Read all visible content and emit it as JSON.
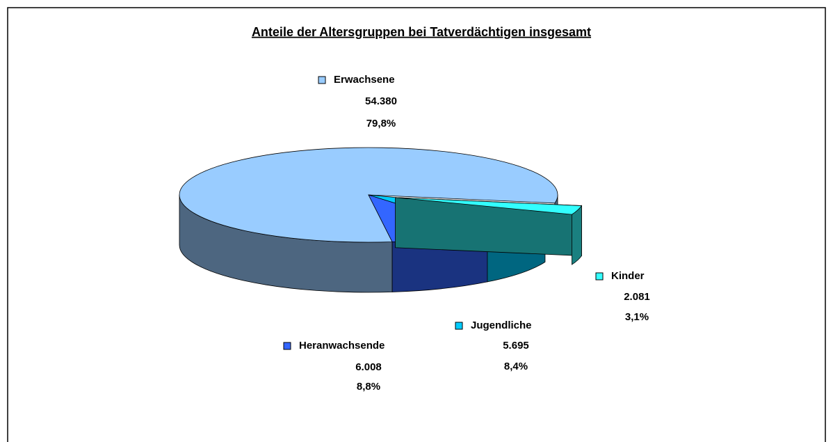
{
  "chart_data": {
    "type": "pie",
    "title": "Anteile der Altersgruppen bei Tatverdächtigen insgesamt",
    "categories": [
      "Kinder",
      "Jugendliche",
      "Heranwachsende",
      "Erwachsene"
    ],
    "values": [
      2081,
      5695,
      6008,
      54380
    ],
    "value_labels": [
      "2.081",
      "5.695",
      "6.008",
      "54.380"
    ],
    "percentages": [
      3.1,
      8.4,
      8.8,
      79.8
    ],
    "percentage_labels": [
      "3,1%",
      "8,4%",
      "8,8%",
      "79,8%"
    ],
    "colors": [
      "#33ffff",
      "#00ccff",
      "#3366ff",
      "#99ccff"
    ],
    "exploded": [
      "Kinder"
    ]
  }
}
